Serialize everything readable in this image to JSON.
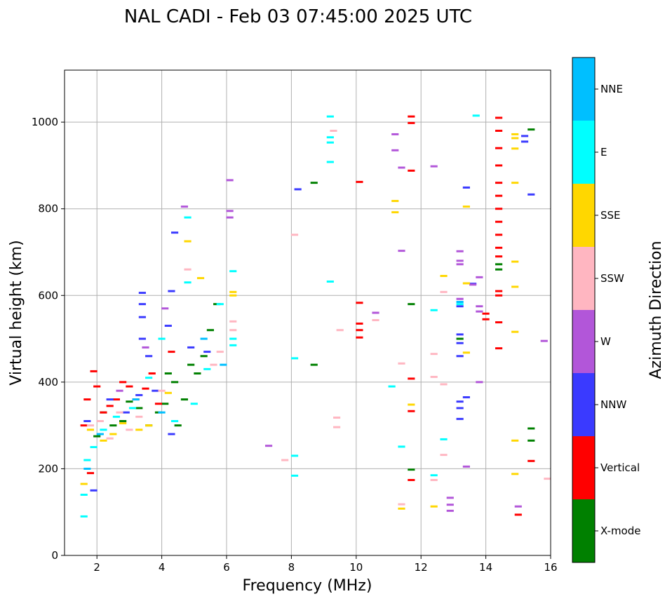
{
  "chart_data": {
    "type": "scatter",
    "title": "NAL CADI - Feb 03 07:45:00 2025 UTC",
    "xlabel": "Frequency (MHz)",
    "ylabel": "Virtual height (km)",
    "xlim": [
      1,
      16
    ],
    "ylim": [
      0,
      1120
    ],
    "xticks": [
      2,
      4,
      6,
      8,
      10,
      12,
      14,
      16
    ],
    "yticks": [
      0,
      200,
      400,
      600,
      800,
      1000
    ],
    "grid": true,
    "colorbar": {
      "label": "Azimuth Direction",
      "categories": [
        "X-mode",
        "Vertical",
        "NNW",
        "W",
        "SSW",
        "SSE",
        "E",
        "NNE"
      ],
      "colors": [
        "#008000",
        "#ff0000",
        "#3a3aff",
        "#b256d9",
        "#ffb6c1",
        "#ffd700",
        "#00ffff",
        "#00bfff"
      ]
    },
    "series": [
      {
        "name": "X-mode",
        "points": [
          [
            2.0,
            275
          ],
          [
            2.2,
            330
          ],
          [
            2.5,
            300
          ],
          [
            2.8,
            310
          ],
          [
            3.0,
            355
          ],
          [
            3.3,
            340
          ],
          [
            3.6,
            300
          ],
          [
            3.9,
            330
          ],
          [
            4.1,
            350
          ],
          [
            4.2,
            420
          ],
          [
            4.4,
            400
          ],
          [
            4.5,
            300
          ],
          [
            4.7,
            360
          ],
          [
            4.9,
            440
          ],
          [
            5.1,
            420
          ],
          [
            5.3,
            460
          ],
          [
            5.5,
            520
          ],
          [
            5.7,
            580
          ],
          [
            8.7,
            440
          ],
          [
            8.7,
            860
          ],
          [
            11.7,
            580
          ],
          [
            11.7,
            198
          ],
          [
            13.2,
            500
          ],
          [
            14.4,
            660
          ],
          [
            14.4,
            672
          ],
          [
            15.4,
            293
          ],
          [
            15.4,
            265
          ],
          [
            15.4,
            983
          ]
        ]
      },
      {
        "name": "Vertical",
        "points": [
          [
            1.6,
            300
          ],
          [
            1.7,
            360
          ],
          [
            1.8,
            190
          ],
          [
            1.9,
            425
          ],
          [
            2.0,
            390
          ],
          [
            2.2,
            330
          ],
          [
            2.4,
            345
          ],
          [
            2.6,
            360
          ],
          [
            2.8,
            400
          ],
          [
            3.0,
            390
          ],
          [
            3.2,
            360
          ],
          [
            3.5,
            385
          ],
          [
            3.7,
            420
          ],
          [
            3.9,
            350
          ],
          [
            4.3,
            470
          ],
          [
            10.1,
            862
          ],
          [
            10.1,
            583
          ],
          [
            10.1,
            535
          ],
          [
            10.1,
            520
          ],
          [
            10.1,
            503
          ],
          [
            11.7,
            1013
          ],
          [
            11.7,
            998
          ],
          [
            11.7,
            888
          ],
          [
            11.7,
            408
          ],
          [
            11.7,
            333
          ],
          [
            11.7,
            174
          ],
          [
            14.0,
            558
          ],
          [
            14.0,
            545
          ],
          [
            14.4,
            1010
          ],
          [
            14.4,
            980
          ],
          [
            14.4,
            940
          ],
          [
            14.4,
            900
          ],
          [
            14.4,
            860
          ],
          [
            14.4,
            830
          ],
          [
            14.4,
            800
          ],
          [
            14.4,
            770
          ],
          [
            14.4,
            740
          ],
          [
            14.4,
            710
          ],
          [
            14.4,
            690
          ],
          [
            14.4,
            610
          ],
          [
            14.4,
            600
          ],
          [
            14.4,
            538
          ],
          [
            14.4,
            478
          ],
          [
            15.0,
            94
          ],
          [
            15.4,
            218
          ]
        ]
      },
      {
        "name": "NNW",
        "points": [
          [
            1.7,
            310
          ],
          [
            1.9,
            150
          ],
          [
            2.4,
            360
          ],
          [
            2.9,
            330
          ],
          [
            3.3,
            370
          ],
          [
            3.4,
            606
          ],
          [
            3.4,
            580
          ],
          [
            3.4,
            550
          ],
          [
            3.4,
            500
          ],
          [
            3.6,
            460
          ],
          [
            3.8,
            380
          ],
          [
            4.2,
            530
          ],
          [
            4.3,
            280
          ],
          [
            4.3,
            610
          ],
          [
            4.4,
            745
          ],
          [
            4.9,
            480
          ],
          [
            5.4,
            470
          ],
          [
            8.2,
            845
          ],
          [
            13.2,
            575
          ],
          [
            13.2,
            510
          ],
          [
            13.2,
            490
          ],
          [
            13.2,
            460
          ],
          [
            13.2,
            355
          ],
          [
            13.2,
            340
          ],
          [
            13.2,
            315
          ],
          [
            13.4,
            365
          ],
          [
            13.4,
            849
          ],
          [
            13.6,
            627
          ],
          [
            15.2,
            968
          ],
          [
            15.2,
            955
          ],
          [
            15.4,
            833
          ]
        ]
      },
      {
        "name": "W",
        "points": [
          [
            2.7,
            380
          ],
          [
            3.5,
            480
          ],
          [
            4.1,
            570
          ],
          [
            4.7,
            805
          ],
          [
            6.1,
            866
          ],
          [
            6.1,
            795
          ],
          [
            6.1,
            780
          ],
          [
            7.3,
            253
          ],
          [
            10.6,
            560
          ],
          [
            11.2,
            972
          ],
          [
            11.2,
            935
          ],
          [
            11.4,
            895
          ],
          [
            11.4,
            703
          ],
          [
            12.4,
            898
          ],
          [
            12.9,
            133
          ],
          [
            12.9,
            117
          ],
          [
            12.9,
            103
          ],
          [
            13.2,
            702
          ],
          [
            13.2,
            680
          ],
          [
            13.2,
            672
          ],
          [
            13.2,
            592
          ],
          [
            13.4,
            205
          ],
          [
            13.6,
            625
          ],
          [
            13.8,
            642
          ],
          [
            13.8,
            575
          ],
          [
            13.8,
            563
          ],
          [
            13.8,
            400
          ],
          [
            15.0,
            113
          ],
          [
            15.8,
            495
          ]
        ]
      },
      {
        "name": "SSW",
        "points": [
          [
            1.8,
            300
          ],
          [
            2.1,
            310
          ],
          [
            2.4,
            270
          ],
          [
            2.7,
            330
          ],
          [
            3.0,
            290
          ],
          [
            3.3,
            320
          ],
          [
            4.0,
            380
          ],
          [
            4.8,
            660
          ],
          [
            5.6,
            440
          ],
          [
            5.8,
            470
          ],
          [
            6.2,
            540
          ],
          [
            6.2,
            520
          ],
          [
            7.8,
            220
          ],
          [
            8.1,
            740
          ],
          [
            9.3,
            980
          ],
          [
            9.4,
            318
          ],
          [
            9.4,
            296
          ],
          [
            9.5,
            520
          ],
          [
            10.6,
            543
          ],
          [
            11.4,
            443
          ],
          [
            11.4,
            118
          ],
          [
            12.4,
            465
          ],
          [
            12.4,
            412
          ],
          [
            12.4,
            174
          ],
          [
            12.7,
            608
          ],
          [
            12.7,
            395
          ],
          [
            12.7,
            232
          ],
          [
            15.9,
            177
          ]
        ]
      },
      {
        "name": "SSE",
        "points": [
          [
            1.6,
            165
          ],
          [
            1.8,
            290
          ],
          [
            2.2,
            265
          ],
          [
            2.5,
            280
          ],
          [
            2.8,
            305
          ],
          [
            3.3,
            290
          ],
          [
            3.6,
            300
          ],
          [
            4.2,
            375
          ],
          [
            4.8,
            725
          ],
          [
            5.2,
            640
          ],
          [
            6.2,
            608
          ],
          [
            6.2,
            600
          ],
          [
            11.2,
            818
          ],
          [
            11.2,
            792
          ],
          [
            11.4,
            108
          ],
          [
            11.7,
            348
          ],
          [
            12.4,
            113
          ],
          [
            12.7,
            645
          ],
          [
            13.4,
            628
          ],
          [
            13.4,
            805
          ],
          [
            13.4,
            468
          ],
          [
            14.9,
            972
          ],
          [
            14.9,
            963
          ],
          [
            14.9,
            939
          ],
          [
            14.9,
            860
          ],
          [
            14.9,
            678
          ],
          [
            14.9,
            620
          ],
          [
            14.9,
            516
          ],
          [
            14.9,
            265
          ],
          [
            14.9,
            188
          ]
        ]
      },
      {
        "name": "E",
        "points": [
          [
            1.6,
            90
          ],
          [
            1.6,
            140
          ],
          [
            1.7,
            220
          ],
          [
            1.9,
            250
          ],
          [
            2.2,
            290
          ],
          [
            2.6,
            320
          ],
          [
            3.1,
            340
          ],
          [
            3.6,
            410
          ],
          [
            4.0,
            500
          ],
          [
            4.4,
            310
          ],
          [
            4.8,
            780
          ],
          [
            4.8,
            630
          ],
          [
            5.0,
            350
          ],
          [
            5.4,
            430
          ],
          [
            5.8,
            580
          ],
          [
            6.2,
            656
          ],
          [
            6.2,
            500
          ],
          [
            6.2,
            485
          ],
          [
            8.1,
            455
          ],
          [
            8.1,
            230
          ],
          [
            8.1,
            184
          ],
          [
            9.2,
            1013
          ],
          [
            9.2,
            965
          ],
          [
            9.2,
            953
          ],
          [
            9.2,
            908
          ],
          [
            9.2,
            632
          ],
          [
            11.1,
            390
          ],
          [
            11.4,
            251
          ],
          [
            12.4,
            566
          ],
          [
            12.4,
            185
          ],
          [
            12.7,
            268
          ],
          [
            13.2,
            580
          ],
          [
            13.7,
            1015
          ]
        ]
      },
      {
        "name": "NNE",
        "points": [
          [
            1.7,
            200
          ],
          [
            2.1,
            280
          ],
          [
            3.2,
            360
          ],
          [
            4.0,
            330
          ],
          [
            5.3,
            500
          ],
          [
            5.9,
            440
          ],
          [
            13.2,
            585
          ]
        ]
      }
    ]
  }
}
